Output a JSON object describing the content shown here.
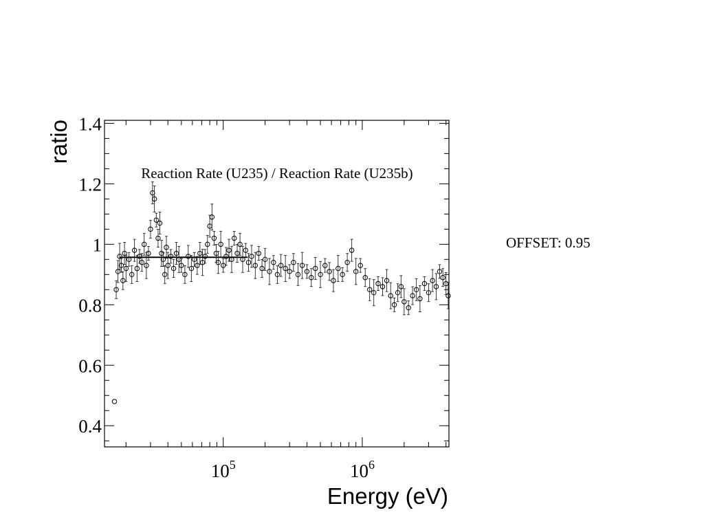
{
  "offset_text": "OFFSET: 0.95",
  "chart_data": {
    "type": "scatter",
    "title": "Reaction Rate (U235) / Reaction Rate (U235b)",
    "xlabel": "Energy (eV)",
    "ylabel": "ratio",
    "xscale": "log",
    "xlim": [
      14000,
      4200000
    ],
    "ylim": [
      0.33,
      1.41
    ],
    "y_ticks": [
      0.4,
      0.6,
      0.8,
      1.0,
      1.2,
      1.4
    ],
    "y_tick_labels": [
      "0.4",
      "0.6",
      "0.8",
      "1",
      "1.2",
      "1.4"
    ],
    "x_ticks": [
      100000,
      1000000
    ],
    "x_tick_base": "10",
    "x_tick_exponents": [
      "5",
      "6"
    ],
    "grid": false,
    "legend": "none",
    "markers": "open circles with error bars",
    "series": [
      {
        "x": [
          16500,
          17000,
          17500,
          18000,
          18500,
          19000,
          19500,
          20000,
          21000,
          22000,
          23000,
          24000,
          25000,
          26000,
          27000,
          28000,
          29000,
          30000,
          31000,
          32000,
          33000,
          34000,
          35000,
          36000,
          37000,
          38000,
          39000,
          40000,
          42000,
          44000,
          46000,
          48000,
          50000,
          53000,
          56000,
          59000,
          62000,
          65000,
          68000,
          71000,
          74000,
          77000,
          80000,
          83000,
          86000,
          89000,
          92000,
          96000,
          100000,
          105000,
          110000,
          115000,
          120000,
          126000,
          132000,
          138000,
          145000,
          152000,
          160000,
          170000,
          180000,
          190000,
          200000,
          215000,
          230000,
          245000,
          260000,
          280000,
          300000,
          320000,
          345000,
          370000,
          400000,
          430000,
          460000,
          500000,
          540000,
          580000,
          620000,
          670000,
          720000,
          780000,
          840000,
          900000,
          970000,
          1050000,
          1130000,
          1210000,
          1300000,
          1400000,
          1500000,
          1600000,
          1700000,
          1800000,
          1900000,
          2000000,
          2150000,
          2300000,
          2450000,
          2600000,
          2800000,
          3000000,
          3200000,
          3400000,
          3600000,
          3800000,
          4000000,
          4150000
        ],
        "y": [
          0.48,
          0.85,
          0.91,
          0.96,
          0.93,
          0.88,
          0.97,
          0.92,
          0.95,
          0.9,
          0.98,
          0.92,
          0.96,
          0.94,
          1.0,
          0.93,
          0.97,
          1.05,
          1.17,
          1.15,
          1.08,
          1.02,
          1.07,
          0.97,
          0.95,
          0.9,
          0.99,
          0.93,
          0.96,
          0.92,
          0.97,
          0.95,
          0.93,
          0.9,
          0.96,
          0.92,
          0.95,
          0.93,
          0.97,
          0.94,
          0.96,
          1.0,
          1.06,
          1.09,
          1.02,
          0.97,
          0.94,
          1.0,
          0.93,
          0.96,
          0.98,
          0.95,
          1.02,
          0.97,
          1.0,
          0.95,
          0.98,
          0.94,
          0.96,
          0.93,
          0.97,
          0.92,
          0.95,
          0.91,
          0.94,
          0.9,
          0.93,
          0.92,
          0.91,
          0.94,
          0.9,
          0.93,
          0.91,
          0.89,
          0.92,
          0.9,
          0.93,
          0.91,
          0.88,
          0.92,
          0.9,
          0.94,
          0.98,
          0.91,
          0.93,
          0.89,
          0.85,
          0.84,
          0.87,
          0.86,
          0.88,
          0.83,
          0.8,
          0.84,
          0.86,
          0.81,
          0.79,
          0.83,
          0.85,
          0.82,
          0.87,
          0.84,
          0.88,
          0.86,
          0.91,
          0.89,
          0.87,
          0.83
        ]
      },
      {
        "name": "",
        "x": [
          18000,
          150000
        ],
        "y": [
          0.957,
          0.957
        ]
      }
    ]
  }
}
